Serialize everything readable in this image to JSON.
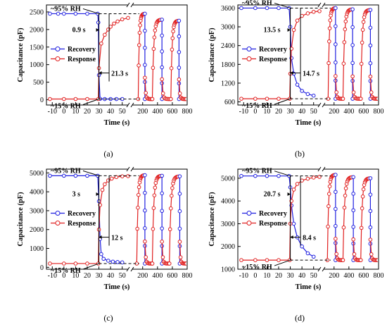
{
  "chart_data": [
    {
      "type": "line",
      "caption": "(a)",
      "xlabel": "Time (s)",
      "ylabel": "Capacitance (pF)",
      "x_ticks_left": [
        -10,
        0,
        10,
        20,
        30,
        40,
        50
      ],
      "x_ticks_right": [
        200,
        400,
        600,
        800
      ],
      "xlim_left": [
        -15,
        55
      ],
      "xlim_right": [
        60,
        800
      ],
      "ylim": [
        -150,
        2700
      ],
      "y_ticks": [
        0,
        500,
        1000,
        1500,
        2000,
        2500
      ],
      "high_level": 2450,
      "low_level": 20,
      "step_time": 30,
      "annotations": {
        "high_rh": "~95% RH",
        "low_rh": "~15% RH",
        "recovery_time": "0.9 s",
        "response_time": "21.3 s"
      },
      "legend": [
        "Recovery",
        "Response"
      ],
      "series": [
        {
          "name": "Recovery",
          "color": "#1f1fe0",
          "marker": "circle",
          "x": [
            -12,
            -5,
            0,
            10,
            20,
            29,
            29.5,
            30,
            31,
            35,
            40,
            45,
            50
          ],
          "y": [
            2450,
            2450,
            2450,
            2450,
            2450,
            2450,
            2200,
            700,
            25,
            20,
            20,
            20,
            20
          ]
        },
        {
          "name": "Response",
          "color": "#e01f1f",
          "marker": "circle",
          "x": [
            -12,
            0,
            10,
            20,
            29.5,
            30,
            32,
            35,
            38,
            40,
            43,
            46,
            50,
            55
          ],
          "y": [
            20,
            20,
            20,
            20,
            20,
            900,
            1600,
            1850,
            2000,
            2080,
            2170,
            2230,
            2290,
            2330
          ]
        }
      ],
      "cycles_right": [
        {
          "rise_at": 140,
          "fall_at": 230,
          "peak": 2450
        },
        {
          "rise_at": 330,
          "fall_at": 460,
          "peak": 2280
        },
        {
          "rise_at": 580,
          "fall_at": 690,
          "peak": 2250
        }
      ]
    },
    {
      "type": "line",
      "caption": "(b)",
      "xlabel": "Time (s)",
      "ylabel": "Capacitance (pF)",
      "x_ticks_left": [
        -10,
        0,
        10,
        20,
        30,
        40,
        50
      ],
      "x_ticks_right": [
        200,
        400,
        600,
        800
      ],
      "xlim_left": [
        -15,
        55
      ],
      "xlim_right": [
        60,
        800
      ],
      "ylim": [
        500,
        3700
      ],
      "y_ticks": [
        600,
        1200,
        1800,
        2400,
        3000,
        3600
      ],
      "high_level": 3600,
      "low_level": 700,
      "step_time": 30,
      "annotations": {
        "high_rh": "~95% RH",
        "low_rh": "~15% RH",
        "recovery_time": "13.5 s",
        "response_time": "14.7 s"
      },
      "legend": [
        "Recovery",
        "Response"
      ],
      "series": [
        {
          "name": "Recovery",
          "color": "#1f1fe0",
          "marker": "circle",
          "x": [
            -12,
            0,
            10,
            20,
            29,
            30,
            31,
            33,
            36,
            40,
            45,
            50
          ],
          "y": [
            3600,
            3600,
            3600,
            3600,
            3600,
            3000,
            2000,
            1500,
            1150,
            950,
            850,
            800
          ]
        },
        {
          "name": "Response",
          "color": "#e01f1f",
          "marker": "circle",
          "x": [
            -12,
            0,
            10,
            20,
            29.5,
            30,
            31,
            33,
            36,
            40,
            45,
            50,
            55
          ],
          "y": [
            700,
            700,
            700,
            700,
            700,
            1500,
            2300,
            2900,
            3200,
            3350,
            3430,
            3480,
            3500
          ]
        }
      ],
      "cycles_right": [
        {
          "rise_at": 120,
          "fall_at": 220,
          "peak": 3600
        },
        {
          "rise_at": 320,
          "fall_at": 450,
          "peak": 3560
        },
        {
          "rise_at": 560,
          "fall_at": 690,
          "peak": 3540
        }
      ]
    },
    {
      "type": "line",
      "caption": "(c)",
      "xlabel": "Time (s)",
      "ylabel": "Capacitance (pF)",
      "x_ticks_left": [
        -10,
        0,
        10,
        20,
        30,
        40,
        50
      ],
      "x_ticks_right": [
        200,
        400,
        600,
        800
      ],
      "xlim_left": [
        -15,
        55
      ],
      "xlim_right": [
        60,
        800
      ],
      "ylim": [
        -100,
        5200
      ],
      "y_ticks": [
        0,
        1000,
        2000,
        3000,
        4000,
        5000
      ],
      "high_level": 4850,
      "low_level": 200,
      "step_time": 30,
      "annotations": {
        "high_rh": "~95% RH",
        "low_rh": "~15% RH",
        "recovery_time": "3 s",
        "response_time": "12 s"
      },
      "legend": [
        "Recovery",
        "Response"
      ],
      "series": [
        {
          "name": "Recovery",
          "color": "#1f1fe0",
          "marker": "circle",
          "x": [
            -12,
            0,
            10,
            20,
            29,
            30,
            31,
            32,
            34,
            38,
            42,
            46,
            50
          ],
          "y": [
            4850,
            4850,
            4850,
            4850,
            4850,
            3500,
            1500,
            700,
            450,
            350,
            300,
            280,
            260
          ]
        },
        {
          "name": "Response",
          "color": "#e01f1f",
          "marker": "circle",
          "x": [
            -12,
            0,
            10,
            20,
            29.5,
            30,
            31,
            33,
            35,
            38,
            41,
            45,
            50,
            55
          ],
          "y": [
            200,
            200,
            200,
            200,
            200,
            2000,
            3300,
            4100,
            4400,
            4600,
            4700,
            4780,
            4820,
            4830
          ]
        }
      ],
      "cycles_right": [
        {
          "rise_at": 120,
          "fall_at": 230,
          "peak": 4880
        },
        {
          "rise_at": 330,
          "fall_at": 460,
          "peak": 4850
        },
        {
          "rise_at": 560,
          "fall_at": 700,
          "peak": 4820
        }
      ]
    },
    {
      "type": "line",
      "caption": "(d)",
      "xlabel": "Time (s)",
      "ylabel": "Capacitance (pF)",
      "x_ticks_left": [
        -10,
        0,
        10,
        20,
        30,
        40,
        50
      ],
      "x_ticks_right": [
        200,
        400,
        600,
        800
      ],
      "xlim_left": [
        -15,
        55
      ],
      "xlim_right": [
        60,
        800
      ],
      "ylim": [
        1000,
        5400
      ],
      "y_ticks": [
        1000,
        2000,
        3000,
        4000,
        5000
      ],
      "high_level": 5100,
      "low_level": 1400,
      "step_time": 30,
      "annotations": {
        "high_rh": "~95% RH",
        "low_rh": "~15% RH",
        "recovery_time": "20.7 s",
        "response_time": "8.4 s"
      },
      "legend": [
        "Recovery",
        "Response"
      ],
      "series": [
        {
          "name": "Recovery",
          "color": "#1f1fe0",
          "marker": "circle",
          "x": [
            -12,
            0,
            10,
            20,
            29,
            30,
            31,
            33,
            36,
            40,
            45,
            50
          ],
          "y": [
            5100,
            5100,
            5100,
            5100,
            5100,
            4600,
            3800,
            3000,
            2400,
            2000,
            1700,
            1550
          ]
        },
        {
          "name": "Response",
          "color": "#e01f1f",
          "marker": "circle",
          "x": [
            -12,
            0,
            10,
            20,
            29.5,
            30,
            31,
            33,
            36,
            40,
            45,
            50,
            55
          ],
          "y": [
            1400,
            1400,
            1400,
            1400,
            1400,
            3000,
            4000,
            4500,
            4750,
            4900,
            4980,
            5030,
            5060
          ]
        }
      ],
      "cycles_right": [
        {
          "rise_at": 110,
          "fall_at": 220,
          "peak": 5150
        },
        {
          "rise_at": 320,
          "fall_at": 460,
          "peak": 5050
        },
        {
          "rise_at": 560,
          "fall_at": 690,
          "peak": 5000
        }
      ]
    }
  ]
}
